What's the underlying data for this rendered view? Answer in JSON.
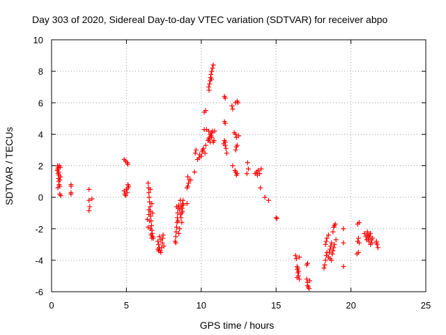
{
  "chart_data": {
    "type": "scatter",
    "title": "Day 303 of 2020, Sidereal Day-to-day VTEC variation (SDTVAR) for receiver abpo",
    "xlabel": "GPS time / hours",
    "ylabel": "SDTVAR / TECUs",
    "xlim": [
      0,
      25
    ],
    "ylim": [
      -6,
      10
    ],
    "xticks": [
      0,
      5,
      10,
      15,
      20,
      25
    ],
    "yticks": [
      -6,
      -4,
      -2,
      0,
      2,
      4,
      6,
      8,
      10
    ],
    "grid": true,
    "marker": "+",
    "color": "#ff0000",
    "series": [
      {
        "name": "SDTVAR",
        "points": [
          [
            0.4,
            2.0
          ],
          [
            0.42,
            1.8
          ],
          [
            0.44,
            1.5
          ],
          [
            0.46,
            1.2
          ],
          [
            0.48,
            1.0
          ],
          [
            0.5,
            0.8
          ],
          [
            0.42,
            0.6
          ],
          [
            0.45,
            1.9
          ],
          [
            0.5,
            1.4
          ],
          [
            0.55,
            1.1
          ],
          [
            0.52,
            2.0
          ],
          [
            0.48,
            1.6
          ],
          [
            0.55,
            0.7
          ],
          [
            0.58,
            1.9
          ],
          [
            0.6,
            1.3
          ],
          [
            0.38,
            1.7
          ],
          [
            0.62,
            0.1
          ],
          [
            0.55,
            0.2
          ],
          [
            1.3,
            0.8
          ],
          [
            1.3,
            0.7
          ],
          [
            1.3,
            0.3
          ],
          [
            1.3,
            0.2
          ],
          [
            2.5,
            0.5
          ],
          [
            2.5,
            -0.2
          ],
          [
            2.55,
            -0.6
          ],
          [
            2.5,
            -0.85
          ],
          [
            2.7,
            -0.1
          ],
          [
            4.85,
            2.4
          ],
          [
            4.95,
            2.3
          ],
          [
            5.05,
            2.2
          ],
          [
            5.1,
            2.1
          ],
          [
            4.85,
            0.4
          ],
          [
            4.9,
            0.2
          ],
          [
            5.0,
            0.5
          ],
          [
            5.05,
            0.3
          ],
          [
            5.1,
            0.6
          ],
          [
            5.1,
            0.8
          ],
          [
            4.95,
            0.1
          ],
          [
            5.15,
            0.7
          ],
          [
            6.45,
            0.9
          ],
          [
            6.48,
            0.6
          ],
          [
            6.5,
            0.3
          ],
          [
            6.52,
            0.0
          ],
          [
            6.55,
            -0.3
          ],
          [
            6.58,
            -0.6
          ],
          [
            6.6,
            -0.9
          ],
          [
            6.62,
            -1.2
          ],
          [
            6.65,
            -1.5
          ],
          [
            6.68,
            -1.8
          ],
          [
            6.7,
            -2.1
          ],
          [
            6.72,
            -2.3
          ],
          [
            6.75,
            -2.5
          ],
          [
            6.5,
            -0.8
          ],
          [
            6.55,
            -1.5
          ],
          [
            6.6,
            -2.0
          ],
          [
            6.65,
            -2.4
          ],
          [
            6.7,
            -2.6
          ],
          [
            6.5,
            -1.1
          ],
          [
            6.45,
            -1.9
          ],
          [
            6.6,
            0.5
          ],
          [
            6.7,
            -0.4
          ],
          [
            6.75,
            -1.0
          ],
          [
            6.4,
            -1.4
          ],
          [
            6.8,
            -2.6
          ],
          [
            7.1,
            -2.8
          ],
          [
            7.15,
            -3.0
          ],
          [
            7.2,
            -3.2
          ],
          [
            7.25,
            -3.4
          ],
          [
            7.3,
            -3.5
          ],
          [
            7.35,
            -3.2
          ],
          [
            7.4,
            -2.9
          ],
          [
            7.42,
            -2.6
          ],
          [
            7.45,
            -2.4
          ],
          [
            7.2,
            -2.5
          ],
          [
            7.3,
            -2.7
          ],
          [
            7.15,
            -3.4
          ],
          [
            7.5,
            -3.1
          ],
          [
            7.1,
            -3.3
          ],
          [
            8.25,
            -2.8
          ],
          [
            8.3,
            -2.5
          ],
          [
            8.32,
            -2.2
          ],
          [
            8.35,
            -1.9
          ],
          [
            8.38,
            -1.6
          ],
          [
            8.4,
            -1.3
          ],
          [
            8.42,
            -1.0
          ],
          [
            8.45,
            -0.7
          ],
          [
            8.5,
            -0.5
          ],
          [
            8.55,
            -0.8
          ],
          [
            8.6,
            -1.1
          ],
          [
            8.65,
            -1.3
          ],
          [
            8.7,
            -1.0
          ],
          [
            8.72,
            -0.7
          ],
          [
            8.75,
            -0.4
          ],
          [
            8.78,
            -0.2
          ],
          [
            8.8,
            -0.5
          ],
          [
            8.35,
            -0.6
          ],
          [
            8.45,
            -1.5
          ],
          [
            8.55,
            -2.0
          ],
          [
            8.6,
            -0.2
          ],
          [
            8.65,
            -0.6
          ],
          [
            8.7,
            -1.6
          ],
          [
            8.3,
            -2.9
          ],
          [
            8.5,
            -2.3
          ],
          [
            8.75,
            -0.9
          ],
          [
            9.05,
            -0.4
          ],
          [
            9.05,
            0.6
          ],
          [
            9.1,
            0.7
          ],
          [
            9.15,
            0.9
          ],
          [
            9.2,
            1.1
          ],
          [
            9.1,
            1.3
          ],
          [
            9.3,
            1.1
          ],
          [
            9.55,
            1.6
          ],
          [
            9.6,
            2.8
          ],
          [
            9.65,
            3.0
          ],
          [
            9.75,
            2.4
          ],
          [
            9.85,
            2.5
          ],
          [
            9.9,
            2.7
          ],
          [
            10.0,
            2.6
          ],
          [
            10.05,
            2.9
          ],
          [
            10.1,
            3.0
          ],
          [
            10.15,
            3.1
          ],
          [
            10.2,
            4.3
          ],
          [
            10.25,
            2.8
          ],
          [
            10.3,
            3.3
          ],
          [
            10.35,
            4.3
          ],
          [
            10.2,
            5.4
          ],
          [
            10.3,
            5.5
          ],
          [
            10.45,
            3.6
          ],
          [
            10.5,
            3.7
          ],
          [
            10.55,
            3.8
          ],
          [
            10.6,
            4.0
          ],
          [
            10.65,
            3.9
          ],
          [
            10.7,
            4.1
          ],
          [
            10.75,
            4.2
          ],
          [
            10.8,
            3.5
          ],
          [
            10.85,
            3.6
          ],
          [
            10.5,
            4.2
          ],
          [
            10.6,
            3.5
          ],
          [
            10.7,
            3.8
          ],
          [
            10.9,
            4.2
          ],
          [
            10.5,
            7.0
          ],
          [
            10.55,
            7.2
          ],
          [
            10.6,
            7.4
          ],
          [
            10.62,
            7.6
          ],
          [
            10.65,
            7.8
          ],
          [
            10.7,
            8.0
          ],
          [
            10.75,
            8.2
          ],
          [
            10.8,
            8.4
          ],
          [
            10.52,
            6.8
          ],
          [
            10.68,
            7.5
          ],
          [
            11.55,
            6.4
          ],
          [
            11.6,
            6.3
          ],
          [
            11.55,
            4.8
          ],
          [
            11.6,
            4.7
          ],
          [
            11.55,
            3.6
          ],
          [
            11.6,
            3.3
          ],
          [
            11.65,
            3.1
          ],
          [
            11.7,
            2.8
          ],
          [
            11.5,
            3.4
          ],
          [
            11.6,
            3.5
          ],
          [
            12.05,
            5.8
          ],
          [
            12.1,
            5.6
          ],
          [
            12.2,
            4.1
          ],
          [
            12.3,
            4.0
          ],
          [
            12.35,
            3.8
          ],
          [
            12.4,
            3.3
          ],
          [
            12.3,
            6.0
          ],
          [
            12.4,
            6.1
          ],
          [
            12.45,
            6.0
          ],
          [
            12.3,
            3.0
          ],
          [
            12.35,
            3.2
          ],
          [
            12.1,
            2.0
          ],
          [
            12.3,
            1.6
          ],
          [
            12.35,
            1.4
          ],
          [
            12.4,
            1.5
          ],
          [
            12.25,
            1.7
          ],
          [
            12.5,
            3.9
          ],
          [
            13.1,
            2.2
          ],
          [
            13.15,
            1.8
          ],
          [
            13.05,
            1.5
          ],
          [
            13.6,
            1.5
          ],
          [
            13.7,
            1.6
          ],
          [
            13.75,
            1.4
          ],
          [
            13.8,
            1.7
          ],
          [
            13.9,
            1.5
          ],
          [
            14.0,
            1.8
          ],
          [
            13.95,
            0.6
          ],
          [
            14.25,
            0.0
          ],
          [
            14.5,
            -0.2
          ],
          [
            15.0,
            -1.3
          ],
          [
            15.05,
            -1.35
          ],
          [
            16.3,
            -3.7
          ],
          [
            16.35,
            -3.9
          ],
          [
            16.4,
            -4.4
          ],
          [
            16.42,
            -4.6
          ],
          [
            16.45,
            -4.8
          ],
          [
            16.5,
            -5.0
          ],
          [
            16.55,
            -5.2
          ],
          [
            16.45,
            -4.5
          ],
          [
            16.5,
            -4.7
          ],
          [
            16.4,
            -5.1
          ],
          [
            16.55,
            -3.8
          ],
          [
            17.05,
            -4.3
          ],
          [
            17.1,
            -4.2
          ],
          [
            17.05,
            -5.2
          ],
          [
            17.1,
            -5.4
          ],
          [
            17.15,
            -5.7
          ],
          [
            17.2,
            -5.8
          ],
          [
            17.1,
            -5.6
          ],
          [
            17.25,
            -5.3
          ],
          [
            18.2,
            -4.5
          ],
          [
            18.25,
            -4.3
          ],
          [
            18.3,
            -4.0
          ],
          [
            18.35,
            -3.7
          ],
          [
            18.4,
            -3.5
          ],
          [
            18.3,
            -3.0
          ],
          [
            18.35,
            -2.8
          ],
          [
            18.4,
            -2.6
          ],
          [
            18.5,
            -3.8
          ],
          [
            18.55,
            -3.5
          ],
          [
            18.6,
            -3.3
          ],
          [
            18.65,
            -3.1
          ],
          [
            18.7,
            -2.9
          ],
          [
            18.75,
            -3.6
          ],
          [
            18.8,
            -3.4
          ],
          [
            18.85,
            -3.2
          ],
          [
            18.9,
            -3.0
          ],
          [
            18.8,
            -2.2
          ],
          [
            18.85,
            -1.9
          ],
          [
            18.9,
            -1.8
          ],
          [
            18.95,
            -1.7
          ],
          [
            19.0,
            -2.7
          ],
          [
            19.5,
            -2.0
          ],
          [
            19.5,
            -2.9
          ],
          [
            19.5,
            -4.4
          ],
          [
            18.6,
            -3.9
          ],
          [
            18.7,
            -4.0
          ],
          [
            18.5,
            -2.4
          ],
          [
            20.45,
            -1.7
          ],
          [
            20.55,
            -1.6
          ],
          [
            20.4,
            -3.6
          ],
          [
            20.5,
            -3.5
          ],
          [
            20.45,
            -2.8
          ],
          [
            20.5,
            -2.6
          ],
          [
            20.55,
            -2.9
          ],
          [
            20.9,
            -2.3
          ],
          [
            21.0,
            -2.5
          ],
          [
            21.05,
            -2.7
          ],
          [
            21.1,
            -2.4
          ],
          [
            21.15,
            -2.6
          ],
          [
            21.2,
            -2.8
          ],
          [
            21.25,
            -2.5
          ],
          [
            21.3,
            -2.3
          ],
          [
            21.35,
            -2.7
          ],
          [
            21.4,
            -2.9
          ],
          [
            21.45,
            -2.6
          ],
          [
            21.1,
            -2.2
          ],
          [
            21.2,
            -2.4
          ],
          [
            21.3,
            -3.0
          ],
          [
            21.7,
            -2.8
          ],
          [
            21.75,
            -3.0
          ],
          [
            21.8,
            -3.2
          ],
          [
            21.7,
            -2.9
          ]
        ]
      }
    ]
  }
}
